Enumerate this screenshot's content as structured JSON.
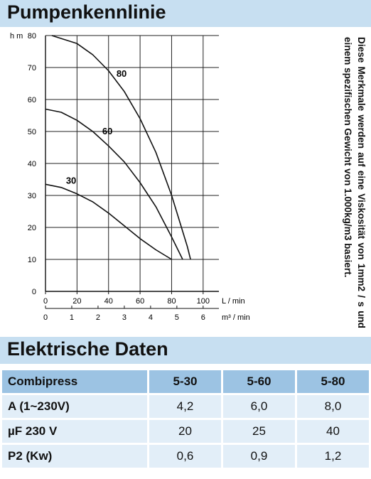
{
  "sections": {
    "curve_title": "Pumpenkennlinie",
    "electrical_title": "Elektrische Daten"
  },
  "side_note": "Diese Merkmale werden auf eine Viskosität von 1mm2 / s und einem spezifischen Gewicht von 1.000kg/m3 basiert.",
  "chart_data": {
    "type": "line",
    "title": "",
    "ylabel": "h m",
    "xlabel": "L / min",
    "xlabel_secondary": "m³ / min",
    "xlim": [
      0,
      110
    ],
    "ylim": [
      0,
      80
    ],
    "x_ticks": [
      "0",
      "20",
      "40",
      "60",
      "80",
      "100"
    ],
    "x_ticks_secondary": [
      "0",
      "1",
      "2",
      "3",
      "4",
      "5",
      "6"
    ],
    "y_ticks": [
      "0",
      "10",
      "20",
      "30",
      "40",
      "50",
      "60",
      "70",
      "80"
    ],
    "grid": true,
    "series": [
      {
        "name": "30",
        "x": [
          0,
          10,
          20,
          30,
          40,
          50,
          60,
          70,
          80
        ],
        "y": [
          33.5,
          32.5,
          30.5,
          28,
          24.5,
          20.5,
          16.5,
          13,
          10
        ]
      },
      {
        "name": "60",
        "x": [
          0,
          10,
          20,
          30,
          40,
          50,
          60,
          70,
          80,
          87
        ],
        "y": [
          57,
          56,
          53.5,
          50,
          45.5,
          40.5,
          34,
          26.5,
          17,
          10
        ]
      },
      {
        "name": "80",
        "x": [
          4,
          20,
          30,
          40,
          50,
          60,
          70,
          80,
          90,
          92
        ],
        "y": [
          80,
          77.5,
          74,
          69,
          62.5,
          54,
          43.5,
          30,
          14,
          10
        ]
      }
    ]
  },
  "electrical_table": {
    "headers": [
      "Combipress",
      "5-30",
      "5-60",
      "5-80"
    ],
    "rows": [
      [
        "A (1~230V)",
        "4,2",
        "6,0",
        "8,0"
      ],
      [
        "µF 230 V",
        "20",
        "25",
        "40"
      ],
      [
        "P2 (Kw)",
        "0,6",
        "0,9",
        "1,2"
      ]
    ]
  },
  "colors": {
    "section_bar": "#c7dff1",
    "table_header": "#9cc3e3",
    "table_cell": "#e2eef8"
  }
}
